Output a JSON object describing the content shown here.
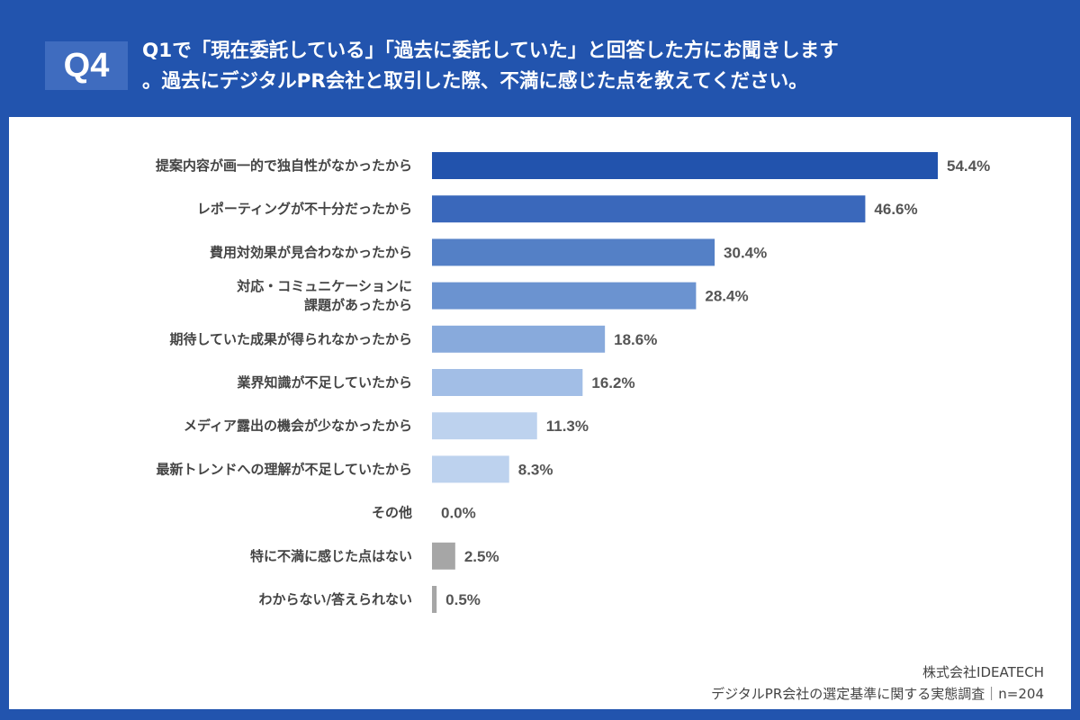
{
  "header": {
    "badge": "Q4",
    "title_line1": "Q1で「現在委託している」「過去に委託していた」と回答した方にお聞きします",
    "title_line2": "。過去にデジタルPR会社と取引した際、不満に感じた点を教えてください。"
  },
  "chart_data": {
    "type": "bar",
    "orientation": "horizontal",
    "categories": [
      [
        "提案内容が画一的で独自性がなかったから"
      ],
      [
        "レポーティングが不十分だったから"
      ],
      [
        "費用対効果が見合わなかったから"
      ],
      [
        "対応・コミュニケーションに",
        "課題があったから"
      ],
      [
        "期待していた成果が得られなかったから"
      ],
      [
        "業界知識が不足していたから"
      ],
      [
        "メディア露出の機会が少なかったから"
      ],
      [
        "最新トレンドへの理解が不足していたから"
      ],
      [
        "その他"
      ],
      [
        "特に不満に感じた点はない"
      ],
      [
        "わからない/答えられない"
      ]
    ],
    "values": [
      54.4,
      46.6,
      30.4,
      28.4,
      18.6,
      16.2,
      11.3,
      8.3,
      0.0,
      2.5,
      0.5
    ],
    "value_labels": [
      "54.4%",
      "46.6%",
      "30.4%",
      "28.4%",
      "18.6%",
      "16.2%",
      "11.3%",
      "8.3%",
      "0.0%",
      "2.5%",
      "0.5%"
    ],
    "colors": [
      "#2253ad",
      "#3a68bb",
      "#5480c6",
      "#6b93d0",
      "#88aadc",
      "#a2bee6",
      "#bdd2ee",
      "#bdd2ee",
      "#a6a6a6",
      "#a6a6a6",
      "#a6a6a6"
    ],
    "xlim": [
      0,
      60
    ],
    "grid": false,
    "legend": "none"
  },
  "footer": {
    "company": "株式会社IDEATECH",
    "survey": "デジタルPR会社の選定基準に関する実態調査｜n=204"
  }
}
